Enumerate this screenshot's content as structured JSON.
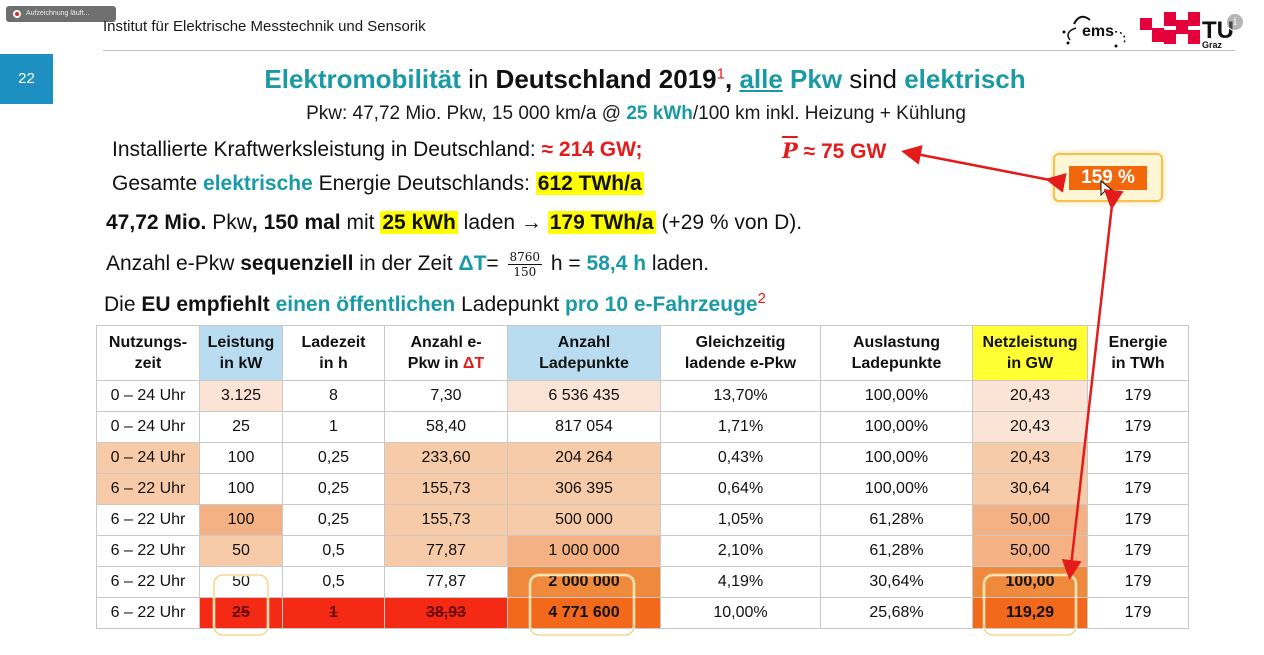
{
  "recording_badge": "Aufzeichnung läuft...",
  "header": {
    "institute": "Institut für Elektrische Messtechnik und Sensorik",
    "slide_number": "22",
    "logo_ems": "ems",
    "logo_tu": "TU",
    "logo_graz": "Graz"
  },
  "title": {
    "p1": "Elektromobilität",
    "p2": " in ",
    "p3": "Deutschland 2019",
    "sup": "1",
    "p4": ", ",
    "p5": "alle",
    "p6": " Pkw",
    "p7": " sind ",
    "p8": "elektrisch"
  },
  "subtitle": {
    "a": "Pkw: 47,72 Mio. Pkw, 15 000 km/a @ ",
    "b": "25 kWh",
    "c": "/100 km inkl. Heizung + Kühlung"
  },
  "line1": {
    "a": "Installierte Kraftwerksleistung in Deutschland: ",
    "b": "≈ 214 GW;",
    "p": "P",
    "c": " ≈ 75 GW"
  },
  "line2": {
    "a": "Gesamte ",
    "b": "elektrische",
    "c": " Energie Deutschlands: ",
    "d": "612 TWh/a"
  },
  "line3": {
    "a": "47,72 Mio.",
    "b": " Pkw",
    "c": ", 150 mal",
    "d": " mit ",
    "e": "25 kWh",
    "f": " laden → ",
    "g": "179 TWh/a",
    "h": " (+29 % von D)."
  },
  "line4": {
    "a": "Anzahl e-Pkw ",
    "b": "sequenziell",
    "c": " in der Zeit ",
    "d": "ΔT",
    "e": "= ",
    "num": "8760",
    "den": "150",
    "f": " h = ",
    "g": "58,4 h",
    "h": " laden."
  },
  "line5": {
    "a": "Die ",
    "b": "EU",
    "c": " empfiehlt",
    "d": " einen öffentlichen",
    "e": " Ladepunkt ",
    "f": "pro 10 e-Fahrzeuge",
    "sup": "2"
  },
  "callout": {
    "value": "159 %"
  },
  "table": {
    "headers": [
      [
        "Nutzungs-",
        "zeit"
      ],
      [
        "Leistung",
        "in kW"
      ],
      [
        "Ladezeit",
        "in h"
      ],
      [
        "Anzahl e-",
        "Pkw in ",
        "ΔT"
      ],
      [
        "Anzahl",
        "Ladepunkte"
      ],
      [
        "Gleichzeitig",
        "ladende e-Pkw"
      ],
      [
        "Auslastung",
        "Ladepunkte"
      ],
      [
        "Netzleistung",
        "in GW"
      ],
      [
        "Energie",
        "in TWh"
      ]
    ],
    "rows": [
      [
        "0 – 24 Uhr",
        "3.125",
        "8",
        "7,30",
        "6 536 435",
        "13,70%",
        "100,00%",
        "20,43",
        "179"
      ],
      [
        "0 – 24 Uhr",
        "25",
        "1",
        "58,40",
        "817 054",
        "1,71%",
        "100,00%",
        "20,43",
        "179"
      ],
      [
        "0 – 24 Uhr",
        "100",
        "0,25",
        "233,60",
        "204 264",
        "0,43%",
        "100,00%",
        "20,43",
        "179"
      ],
      [
        "6 – 22 Uhr",
        "100",
        "0,25",
        "155,73",
        "306 395",
        "0,64%",
        "100,00%",
        "30,64",
        "179"
      ],
      [
        "6 – 22 Uhr",
        "100",
        "0,25",
        "155,73",
        "500 000",
        "1,05%",
        "61,28%",
        "50,00",
        "179"
      ],
      [
        "6 – 22 Uhr",
        "50",
        "0,5",
        "77,87",
        "1 000 000",
        "2,10%",
        "61,28%",
        "50,00",
        "179"
      ],
      [
        "6 – 22 Uhr",
        "50",
        "0,5",
        "77,87",
        "2 000 000",
        "4,19%",
        "30,64%",
        "100,00",
        "179"
      ],
      [
        "6 – 22 Uhr",
        "25",
        "1",
        "38,93",
        "4 771 600",
        "10,00%",
        "25,68%",
        "119,29",
        "179"
      ]
    ]
  },
  "colors": {
    "teal": "#1a9aa6",
    "red": "#e31b1b",
    "highlight": "#ffff00",
    "slide_tab": "#1d8fc0",
    "callout_fill": "#f2660c"
  }
}
